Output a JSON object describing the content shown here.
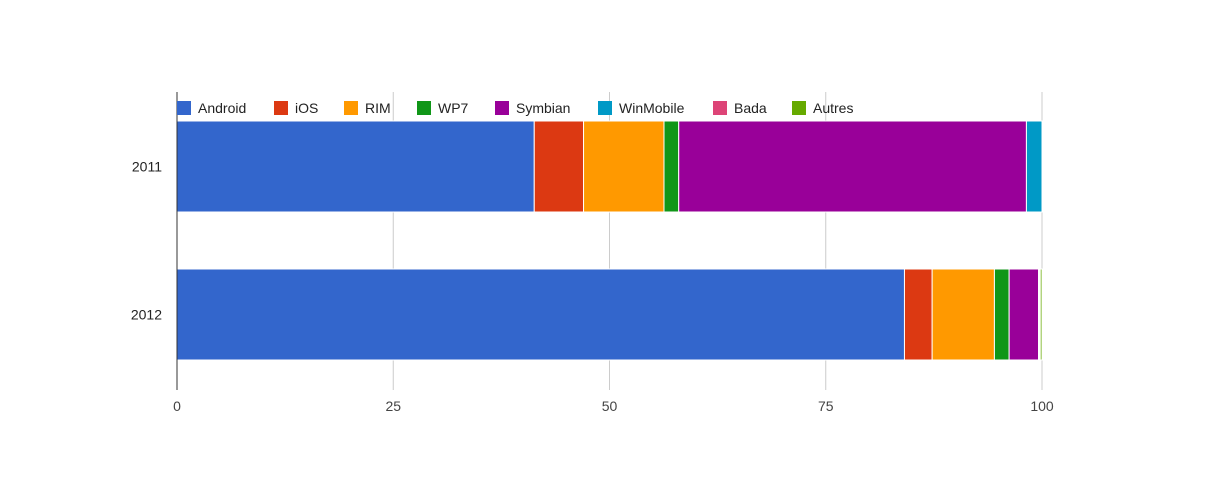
{
  "chart_data": {
    "type": "bar",
    "orientation": "horizontal",
    "stacked": true,
    "categories": [
      "2011",
      "2012"
    ],
    "series": [
      {
        "name": "Android",
        "color": "#3366cc",
        "values": [
          41.3,
          84.1
        ]
      },
      {
        "name": "iOS",
        "color": "#dc3912",
        "values": [
          5.7,
          3.2
        ]
      },
      {
        "name": "RIM",
        "color": "#ff9900",
        "values": [
          9.3,
          7.2
        ]
      },
      {
        "name": "WP7",
        "color": "#109618",
        "values": [
          1.7,
          1.7
        ]
      },
      {
        "name": "Symbian",
        "color": "#990099",
        "values": [
          40.2,
          3.4
        ]
      },
      {
        "name": "WinMobile",
        "color": "#0099c6",
        "values": [
          1.8,
          0.1
        ]
      },
      {
        "name": "Bada",
        "color": "#dd4477",
        "values": [
          0.0,
          0.1
        ]
      },
      {
        "name": "Autres",
        "color": "#66aa00",
        "values": [
          0.0,
          0.2
        ]
      }
    ],
    "xlim": [
      0,
      100
    ],
    "xticks": [
      "0",
      "25",
      "50",
      "75",
      "100"
    ],
    "grid": true,
    "legend_position": "top"
  }
}
